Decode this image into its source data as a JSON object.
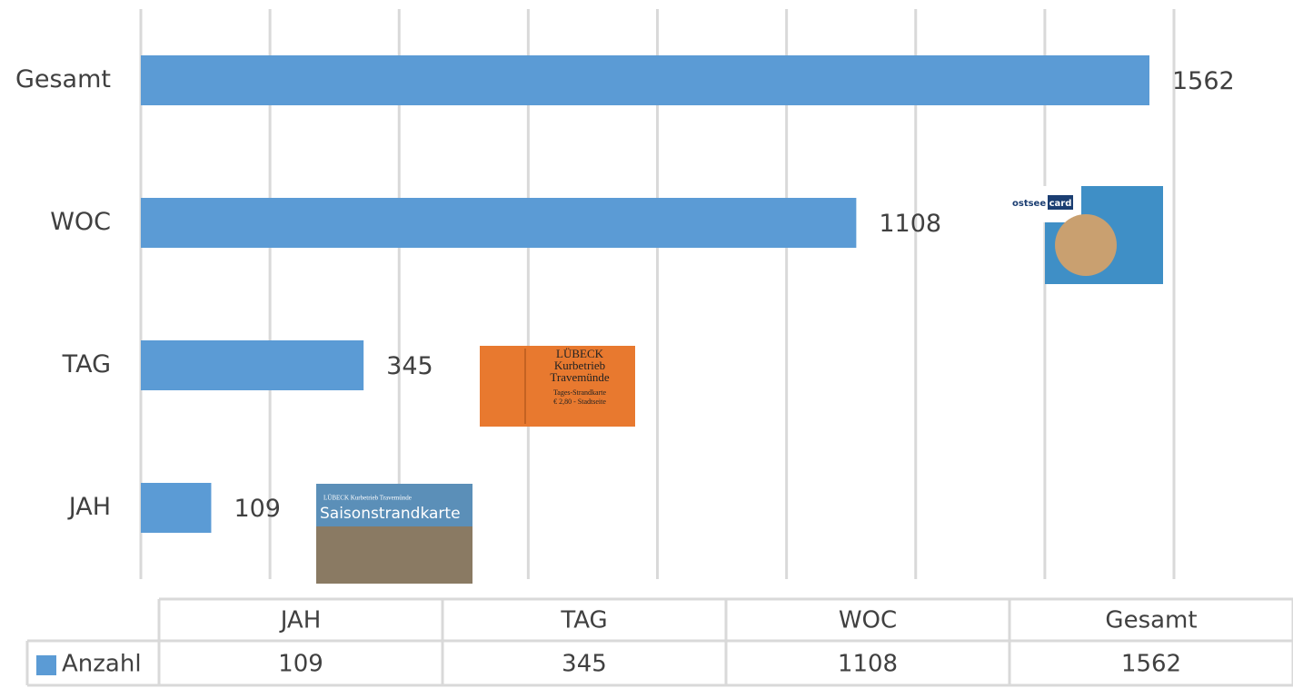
{
  "chart_data": {
    "type": "bar",
    "orientation": "horizontal",
    "categories": [
      "JAH",
      "TAG",
      "WOC",
      "Gesamt"
    ],
    "series": [
      {
        "name": "Anzahl",
        "color": "#5b9bd5",
        "values": [
          109,
          345,
          1108,
          1562
        ]
      }
    ],
    "xlim": [
      0,
      1600
    ],
    "xticks": [
      0,
      200,
      400,
      600,
      800,
      1000,
      1200,
      1400,
      1600
    ],
    "grid": true,
    "data_table": true
  },
  "images": {
    "saison": {
      "header": "LÜBECK Kurbetrieb Travemünde",
      "title": "Saisonstrandkarte"
    },
    "tages": {
      "line1": "LÜBECK",
      "line2": "Kurbetrieb",
      "line3": "Travemünde",
      "line4": "Tages-Strandkarte",
      "line5": "€ 2,80 - Stadtseite"
    },
    "ostsee": {
      "word": "ostsee",
      "badge": "card"
    }
  }
}
